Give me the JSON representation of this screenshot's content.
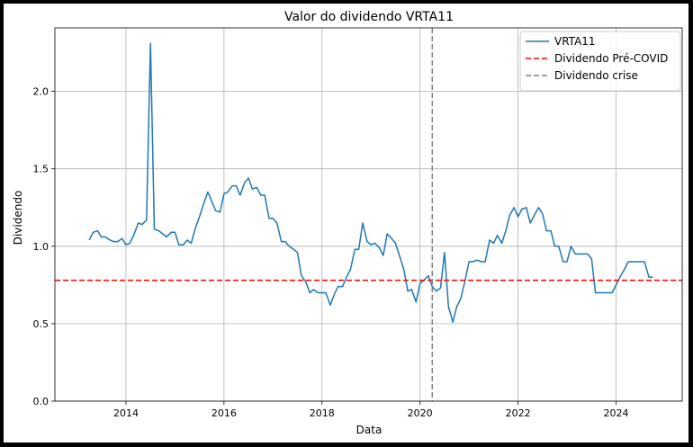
{
  "chart_data": {
    "type": "line",
    "title": "Valor do dividendo VRTA11",
    "xlabel": "Data",
    "ylabel": "Dividendo",
    "xlim": [
      2012.55,
      2025.35
    ],
    "ylim": [
      0.0,
      2.41
    ],
    "grid": true,
    "legend_position": "top-right",
    "x_ticks": [
      2014,
      2016,
      2018,
      2020,
      2022,
      2024
    ],
    "y_ticks": [
      0.0,
      0.5,
      1.0,
      1.5,
      2.0
    ],
    "series": [
      {
        "name": "VRTA11",
        "color": "#1f77b4",
        "style": "solid",
        "x": [
          2013.25,
          2013.33,
          2013.42,
          2013.5,
          2013.58,
          2013.67,
          2013.75,
          2013.83,
          2013.92,
          2014.0,
          2014.08,
          2014.17,
          2014.25,
          2014.33,
          2014.42,
          2014.5,
          2014.58,
          2014.67,
          2014.75,
          2014.83,
          2014.92,
          2015.0,
          2015.08,
          2015.17,
          2015.25,
          2015.33,
          2015.42,
          2015.5,
          2015.58,
          2015.67,
          2015.75,
          2015.83,
          2015.92,
          2016.0,
          2016.08,
          2016.17,
          2016.25,
          2016.33,
          2016.42,
          2016.5,
          2016.58,
          2016.67,
          2016.75,
          2016.83,
          2016.92,
          2017.0,
          2017.08,
          2017.17,
          2017.25,
          2017.33,
          2017.42,
          2017.5,
          2017.58,
          2017.67,
          2017.75,
          2017.83,
          2017.92,
          2018.0,
          2018.08,
          2018.17,
          2018.25,
          2018.33,
          2018.42,
          2018.5,
          2018.58,
          2018.67,
          2018.75,
          2018.83,
          2018.92,
          2019.0,
          2019.08,
          2019.17,
          2019.25,
          2019.33,
          2019.42,
          2019.5,
          2019.58,
          2019.67,
          2019.75,
          2019.83,
          2019.92,
          2020.0,
          2020.08,
          2020.17,
          2020.25,
          2020.33,
          2020.42,
          2020.5,
          2020.58,
          2020.67,
          2020.75,
          2020.83,
          2020.92,
          2021.0,
          2021.08,
          2021.17,
          2021.25,
          2021.33,
          2021.42,
          2021.5,
          2021.58,
          2021.67,
          2021.75,
          2021.83,
          2021.92,
          2022.0,
          2022.08,
          2022.17,
          2022.25,
          2022.33,
          2022.42,
          2022.5,
          2022.58,
          2022.67,
          2022.75,
          2022.83,
          2022.92,
          2023.0,
          2023.08,
          2023.17,
          2023.25,
          2023.33,
          2023.42,
          2023.5,
          2023.58,
          2023.67,
          2023.75,
          2023.83,
          2023.92,
          2024.0,
          2024.08,
          2024.17,
          2024.25,
          2024.33,
          2024.42,
          2024.5,
          2024.58,
          2024.67,
          2024.75
        ],
        "values": [
          1.04,
          1.09,
          1.1,
          1.06,
          1.06,
          1.04,
          1.03,
          1.03,
          1.05,
          1.01,
          1.02,
          1.08,
          1.15,
          1.14,
          1.17,
          2.31,
          1.11,
          1.1,
          1.08,
          1.06,
          1.09,
          1.09,
          1.01,
          1.01,
          1.04,
          1.02,
          1.12,
          1.19,
          1.27,
          1.35,
          1.29,
          1.23,
          1.22,
          1.34,
          1.35,
          1.39,
          1.39,
          1.33,
          1.41,
          1.44,
          1.37,
          1.38,
          1.33,
          1.33,
          1.18,
          1.18,
          1.15,
          1.03,
          1.03,
          1.0,
          0.98,
          0.96,
          0.81,
          0.77,
          0.7,
          0.72,
          0.7,
          0.7,
          0.7,
          0.62,
          0.69,
          0.74,
          0.74,
          0.8,
          0.85,
          0.98,
          0.98,
          1.15,
          1.03,
          1.01,
          1.02,
          0.99,
          0.94,
          1.08,
          1.05,
          1.02,
          0.94,
          0.85,
          0.71,
          0.72,
          0.64,
          0.76,
          0.78,
          0.81,
          0.74,
          0.71,
          0.73,
          0.96,
          0.61,
          0.51,
          0.61,
          0.66,
          0.78,
          0.9,
          0.9,
          0.91,
          0.9,
          0.9,
          1.04,
          1.02,
          1.07,
          1.02,
          1.1,
          1.2,
          1.25,
          1.19,
          1.24,
          1.25,
          1.15,
          1.2,
          1.25,
          1.21,
          1.1,
          1.1,
          1.0,
          1.0,
          0.9,
          0.9,
          1.0,
          0.95,
          0.95,
          0.95,
          0.95,
          0.92,
          0.7,
          0.7,
          0.7,
          0.7,
          0.7,
          0.75,
          0.8,
          0.85,
          0.9,
          0.9,
          0.9,
          0.9,
          0.9,
          0.8,
          0.8
        ]
      },
      {
        "name": "Dividendo Pré-COVID",
        "color": "#ff0000",
        "style": "dashed",
        "hline": 0.78
      },
      {
        "name": "Dividendo crise",
        "color": "#808080",
        "style": "dashed",
        "vline": 2020.25
      }
    ]
  }
}
